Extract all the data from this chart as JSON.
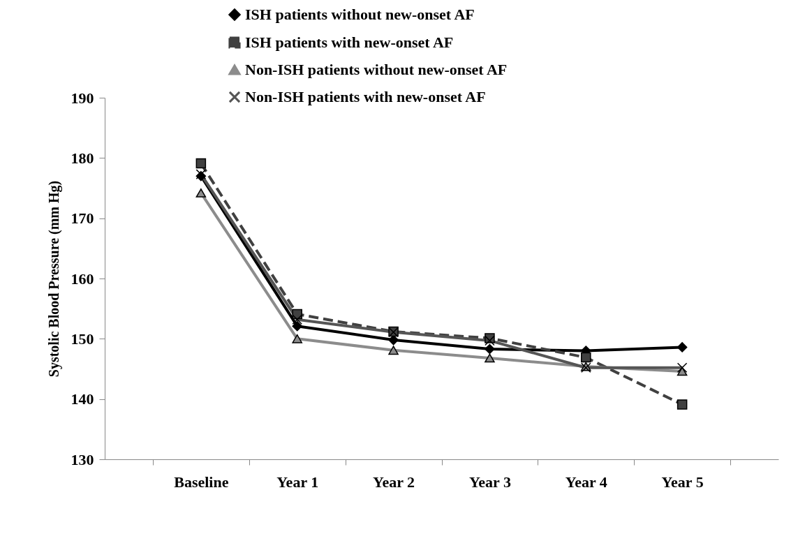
{
  "chart_data": {
    "type": "line",
    "ylabel": "Systolic Blood Pressure (mm Hg)",
    "categories": [
      "Baseline",
      "Year 1",
      "Year 2",
      "Year 3",
      "Year 4",
      "Year 5"
    ],
    "ylim": [
      130,
      190
    ],
    "yticks": [
      130,
      140,
      150,
      160,
      170,
      180,
      190
    ],
    "grid": false,
    "legend": "top",
    "series": [
      {
        "name": "ISH patients without new-onset AF",
        "color": "#000000",
        "marker": "diamond",
        "line_style": "solid",
        "values": [
          177,
          152.1,
          149.8,
          148.3,
          148,
          148.6
        ]
      },
      {
        "name": "ISH patients with new-onset AF",
        "color": "#404040",
        "marker": "square",
        "line_style": "dashed",
        "values": [
          179.1,
          154.1,
          151.2,
          150.1,
          146.9,
          139.1
        ]
      },
      {
        "name": "Non-ISH patients without new-onset AF",
        "color": "#8c8c8c",
        "marker": "triangle",
        "line_style": "solid",
        "values": [
          174.2,
          150,
          148.1,
          146.8,
          145.4,
          144.6
        ]
      },
      {
        "name": "Non-ISH patients with new-onset AF",
        "color": "#555555",
        "marker": "cross",
        "line_style": "solid",
        "values": [
          177.3,
          153.2,
          151.1,
          149.7,
          145.2,
          145.2
        ]
      }
    ]
  }
}
